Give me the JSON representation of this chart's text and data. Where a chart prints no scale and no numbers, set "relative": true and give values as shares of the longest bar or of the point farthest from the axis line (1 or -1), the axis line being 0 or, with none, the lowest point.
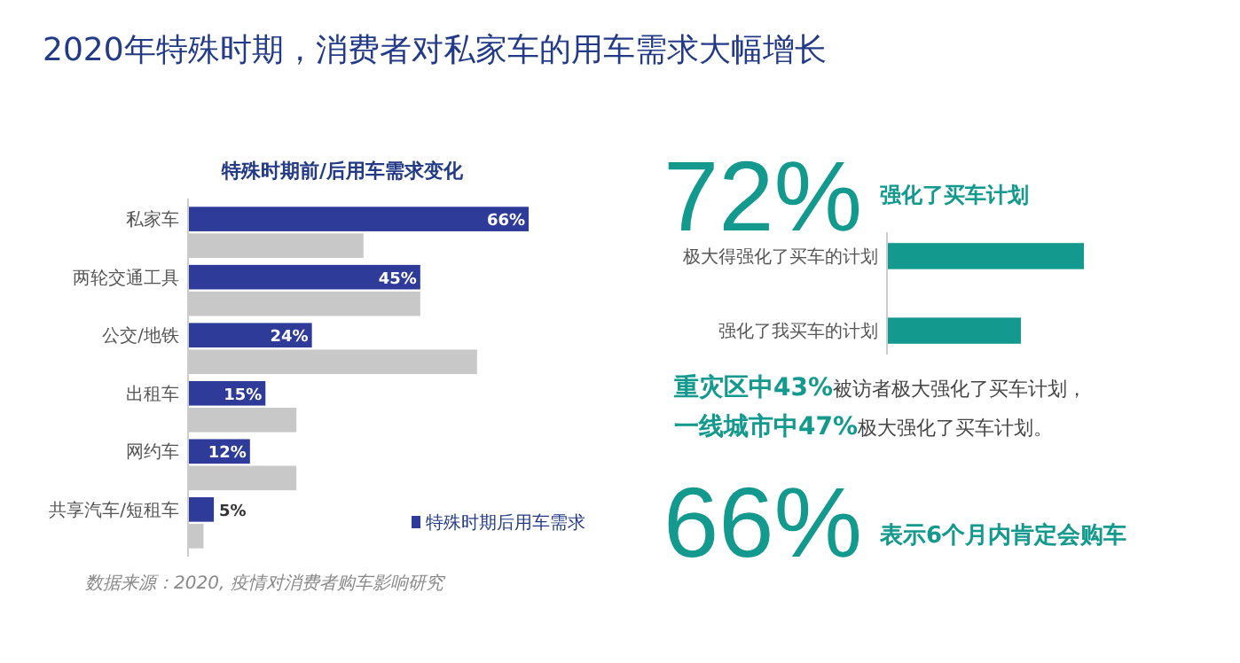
{
  "chart_data": [
    {
      "type": "other",
      "title": "2020年特殊时期，消费者对私家车的用车需求大幅增长"
    },
    {
      "type": "bar",
      "orientation": "horizontal",
      "title": "特殊时期前/后用车需求变化",
      "categories": [
        "私家车",
        "两轮交通工具",
        "公交/地铁",
        "出租车",
        "网约车",
        "共享汽车/短租车"
      ],
      "series": [
        {
          "name": "特殊时期后用车需求",
          "color": "#2e3b98",
          "values": [
            66,
            45,
            24,
            15,
            12,
            5
          ],
          "value_labels": [
            "66%",
            "45%",
            "24%",
            "15%",
            "12%",
            "5%"
          ]
        },
        {
          "color": "#c8c8c8",
          "values": [
            34,
            45,
            56,
            21,
            21,
            3
          ]
        }
      ],
      "legend": "bottom right",
      "tick_labels": "y",
      "annotations": [
        "数据来源：2020, 疫情对消费者购车影响研究"
      ]
    },
    {
      "type": "bar",
      "orientation": "horizontal",
      "relative": true,
      "title": "72%",
      "subtitle": "强化了买车计划",
      "categories": [
        "极大得强化了买车的计划",
        "强化了我买车的计划"
      ],
      "series": [
        {
          "color": "#13998d",
          "values": [
            1,
            0.68
          ]
        }
      ],
      "tick_labels": "y",
      "annotations": [
        "重灾区中43%",
        "被访者极大强化了买车计划，",
        "一线城市中47%",
        "极大强化了买车计划。",
        "66%",
        "表示6个月内肯定会购车"
      ]
    }
  ]
}
